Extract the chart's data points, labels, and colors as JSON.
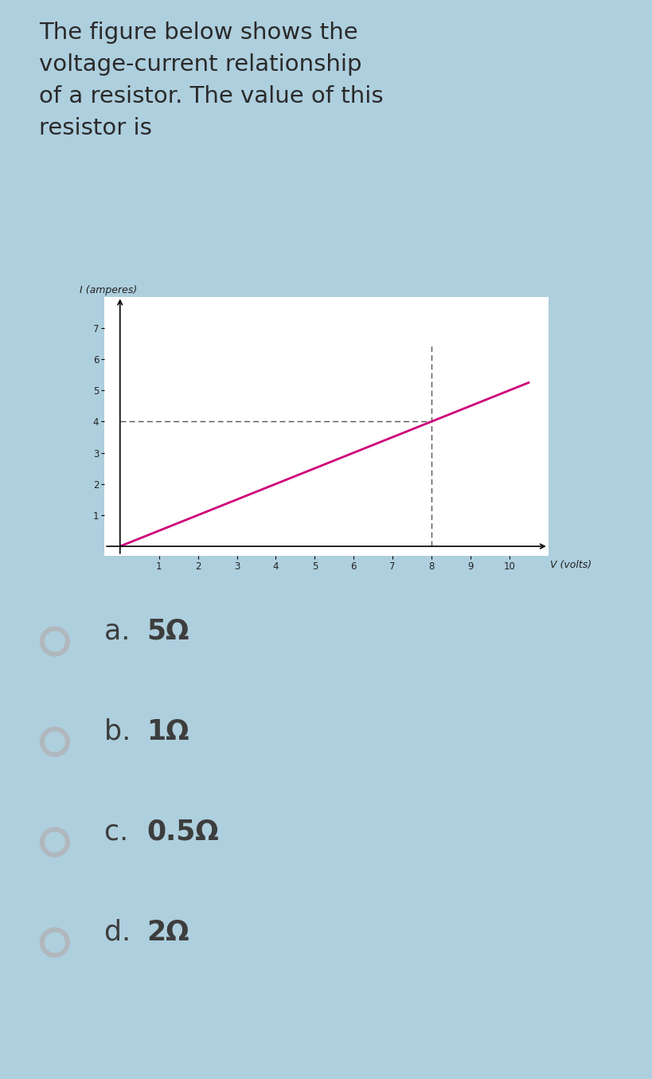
{
  "bg_color": "#aecfde",
  "card_bg": "#eef2f5",
  "title_text": "The figure below shows the\nvoltage-current relationship\nof a resistor. The value of this\nresistor is",
  "title_fontsize": 21,
  "title_color": "#2a2a2a",
  "graph": {
    "xticks": [
      1,
      2,
      3,
      4,
      5,
      6,
      7,
      8,
      9,
      10
    ],
    "yticks": [
      1,
      2,
      3,
      4,
      5,
      6,
      7
    ],
    "xlabel": "V (volts)",
    "ylabel": "I (amperes)",
    "line_color": "#cc007a",
    "line_x_start": 0.0,
    "line_x_end": 10.5,
    "line_slope": 0.5,
    "line_intercept": 0.0,
    "dashed_color": "#555555",
    "dashed_v": 8,
    "dashed_i": 4,
    "bg_color": "#ffffff",
    "xlim_min": -0.4,
    "xlim_max": 11.0,
    "ylim_min": -0.3,
    "ylim_max": 8.0
  },
  "options": [
    {
      "letter": "a",
      "text": "5Ω"
    },
    {
      "letter": "b",
      "text": "1Ω"
    },
    {
      "letter": "c",
      "text": "0.5Ω"
    },
    {
      "letter": "d",
      "text": "2Ω"
    }
  ],
  "option_fontsize": 25,
  "option_color": "#3d3d3d",
  "radio_color_outer": "#b0b8be",
  "radio_color_inner": "#aecfde"
}
